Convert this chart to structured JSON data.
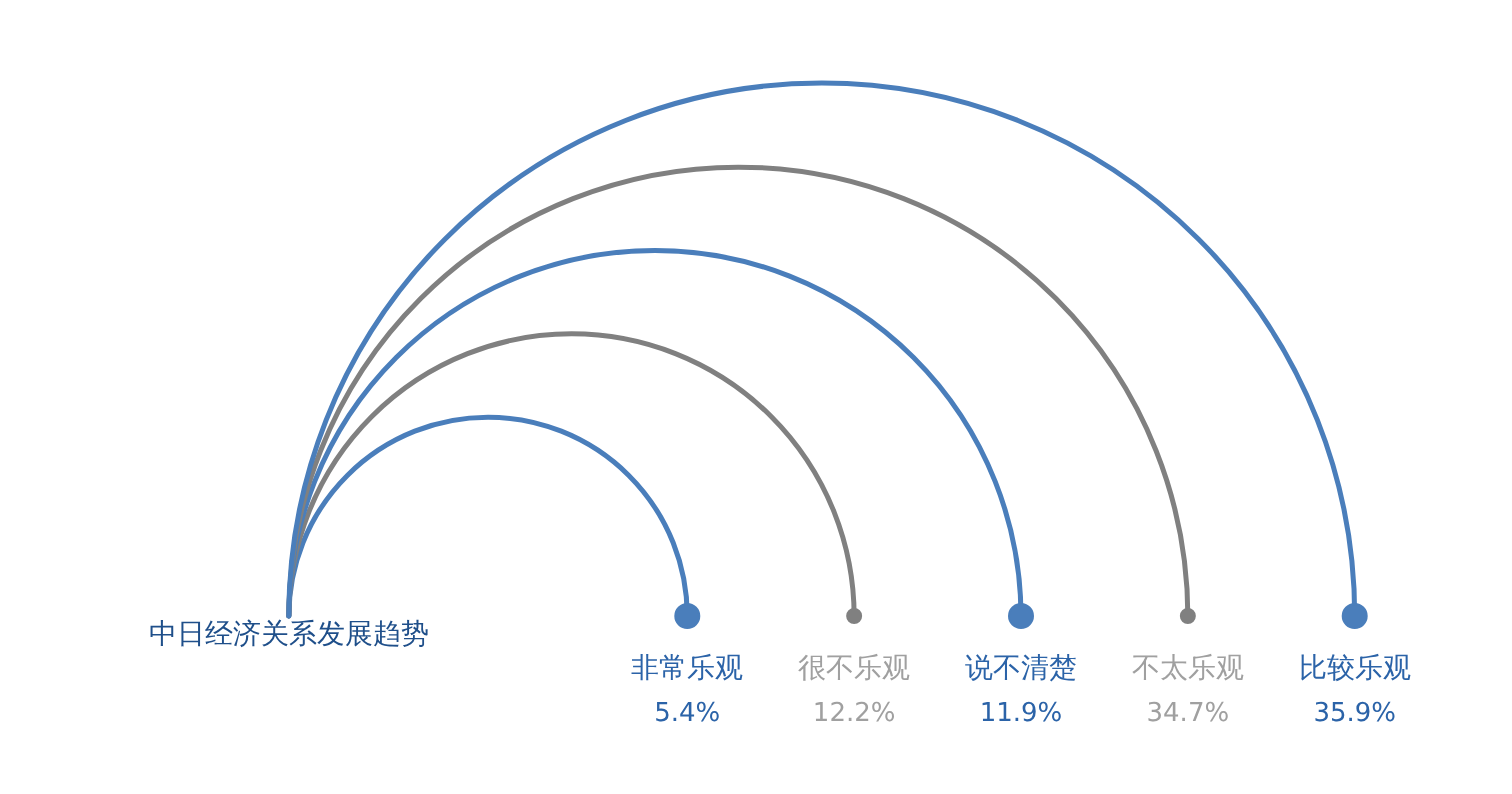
{
  "chart_data": {
    "type": "other",
    "title": "中日经济关系发展趋势",
    "categories": [
      "非常乐观",
      "很不乐观",
      "说不清楚",
      "不太乐观",
      "比较乐观"
    ],
    "values": [
      5.4,
      12.2,
      11.9,
      34.7,
      35.9
    ],
    "value_labels": [
      "5.4%",
      "12.2%",
      "11.9%",
      "34.7%",
      "35.9%"
    ],
    "colors": [
      "#4a7ebb",
      "#808080",
      "#4a7ebb",
      "#808080",
      "#4a7ebb"
    ]
  }
}
